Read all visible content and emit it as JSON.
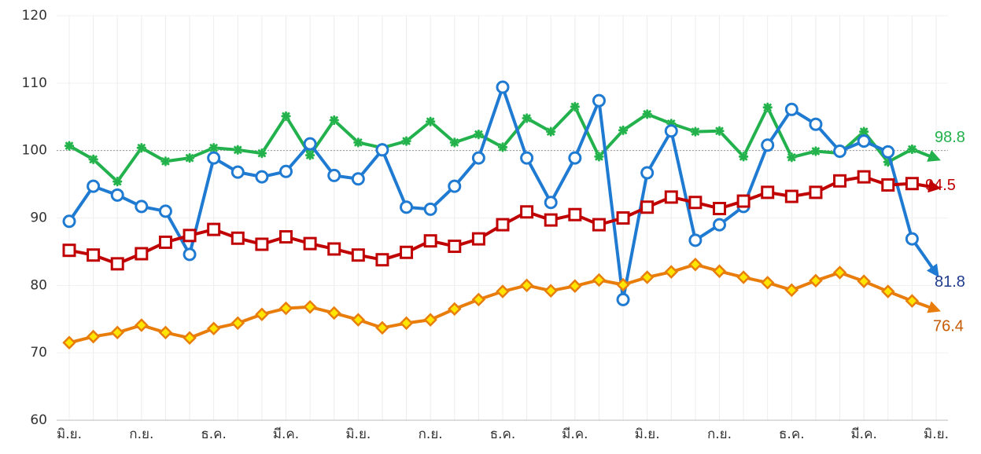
{
  "chart_data": {
    "type": "line",
    "categories": [
      "มิ.ย.",
      null,
      null,
      "ก.ย.",
      null,
      null,
      "ธ.ค.",
      null,
      null,
      "มี.ค.",
      null,
      null,
      "มิ.ย.",
      null,
      null,
      "ก.ย.",
      null,
      null,
      "ธ.ค.",
      null,
      null,
      "มี.ค.",
      null,
      null,
      "มิ.ย.",
      null,
      null,
      "ก.ย.",
      null,
      null,
      "ธ.ค.",
      null,
      null,
      "มี.ค.",
      null,
      null,
      "มิ.ย."
    ],
    "series": [
      {
        "name": "green",
        "color": "#22b14c",
        "marker": "asterisk",
        "marker_fill": "#7ee07e",
        "label_color": "#22b14c",
        "values": [
          100.7,
          98.7,
          95.4,
          100.4,
          98.4,
          98.9,
          100.4,
          100.1,
          99.6,
          105.1,
          99.3,
          104.5,
          101.2,
          100.4,
          101.4,
          104.3,
          101.2,
          102.4,
          100.5,
          104.8,
          102.8,
          106.5,
          99.1,
          103.0,
          105.4,
          104.0,
          102.8,
          102.9,
          99.1,
          106.4,
          99.0,
          99.9,
          99.6,
          102.8,
          98.3,
          100.2,
          98.8
        ]
      },
      {
        "name": "blue",
        "color": "#1f7ad2",
        "marker": "circle",
        "marker_fill": "#ffffff",
        "label_color": "#1f3b8c",
        "values": [
          89.5,
          94.7,
          93.4,
          91.7,
          91.0,
          84.6,
          98.9,
          96.8,
          96.1,
          96.9,
          101.0,
          96.3,
          95.8,
          100.1,
          91.6,
          91.3,
          94.7,
          98.9,
          109.4,
          98.9,
          92.3,
          98.9,
          107.4,
          77.9,
          96.7,
          102.9,
          86.7,
          89.0,
          91.7,
          100.8,
          106.1,
          103.9,
          99.9,
          101.4,
          99.8,
          86.9,
          81.8
        ]
      },
      {
        "name": "red",
        "color": "#c00000",
        "marker": "square",
        "marker_fill": "#ffffff",
        "label_color": "#c00000",
        "values": [
          85.2,
          84.5,
          83.2,
          84.7,
          86.4,
          87.4,
          88.3,
          87.0,
          86.1,
          87.2,
          86.2,
          85.4,
          84.5,
          83.8,
          84.9,
          86.6,
          85.8,
          86.9,
          89.0,
          90.9,
          89.7,
          90.5,
          89.0,
          90.0,
          91.6,
          93.1,
          92.3,
          91.4,
          92.5,
          93.8,
          93.2,
          93.8,
          95.5,
          96.1,
          94.9,
          95.1,
          94.5
        ]
      },
      {
        "name": "orange",
        "color": "#e87d0c",
        "marker": "diamond",
        "marker_fill": "#ffe600",
        "label_color": "#c55a00",
        "values": [
          71.5,
          72.4,
          73.0,
          74.1,
          73.0,
          72.2,
          73.6,
          74.4,
          75.7,
          76.6,
          76.8,
          75.9,
          74.9,
          73.7,
          74.4,
          74.9,
          76.5,
          77.9,
          79.1,
          80.0,
          79.2,
          79.9,
          80.8,
          80.1,
          81.2,
          82.0,
          83.1,
          82.1,
          81.2,
          80.4,
          79.3,
          80.7,
          81.9,
          80.6,
          79.1,
          77.7,
          76.4
        ]
      }
    ],
    "ylim": [
      60,
      120
    ],
    "yticks": [
      60,
      70,
      80,
      90,
      100,
      110,
      120
    ],
    "grid": true,
    "reference_line": 100
  }
}
